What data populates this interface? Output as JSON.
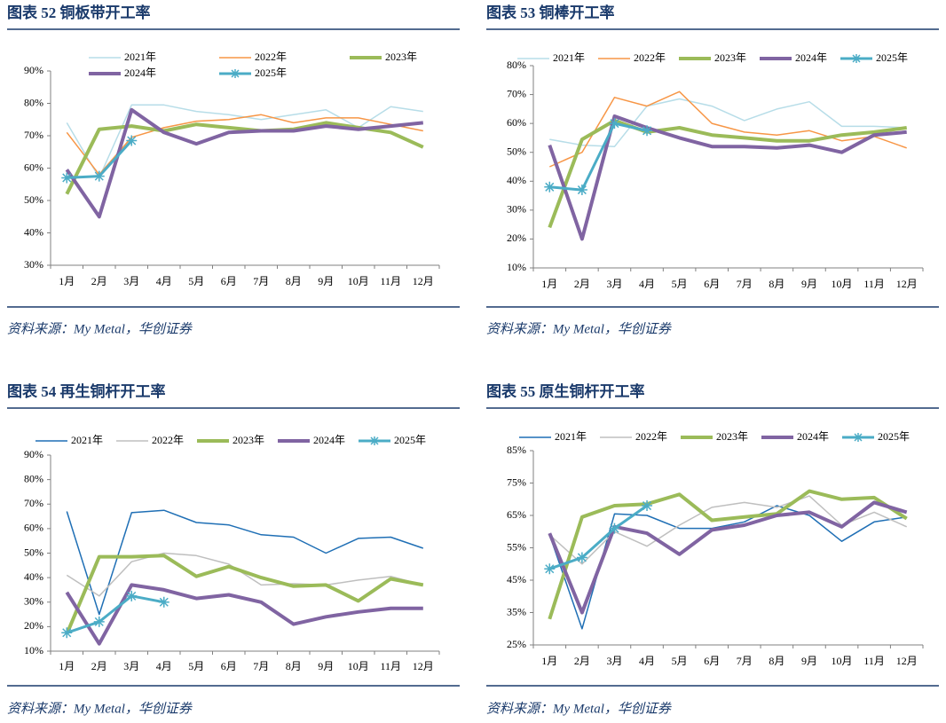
{
  "chart_data": [
    {
      "type": "line",
      "title": "图表 52 铜板带开工率",
      "source": "资料来源：My Metal，华创证券",
      "categories": [
        "1月",
        "2月",
        "3月",
        "4月",
        "5月",
        "6月",
        "7月",
        "8月",
        "9月",
        "10月",
        "11月",
        "12月"
      ],
      "ylim": [
        30,
        90
      ],
      "yticks": [
        {
          "value": 30,
          "label": "30%"
        },
        {
          "value": 40,
          "label": "40%"
        },
        {
          "value": 50,
          "label": "50%"
        },
        {
          "value": 60,
          "label": "60%"
        },
        {
          "value": 70,
          "label": "70%"
        },
        {
          "value": 80,
          "label": "80%"
        },
        {
          "value": 90,
          "label": "90%"
        }
      ],
      "series": [
        {
          "name": "2021年",
          "color": "#b7dde8",
          "values": [
            74,
            57,
            79.5,
            79.5,
            77.5,
            76.5,
            75,
            76.5,
            78,
            72.5,
            79,
            77.5
          ]
        },
        {
          "name": "2022年",
          "color": "#f79646",
          "values": [
            71,
            58,
            69.5,
            72.5,
            74.5,
            75,
            76.5,
            74,
            75.5,
            75.5,
            73.5,
            71.5
          ]
        },
        {
          "name": "2023年",
          "color": "#9bbb59",
          "values": [
            52,
            72,
            73,
            71.5,
            73.5,
            72.5,
            71.5,
            72,
            74,
            72.5,
            71,
            66.5
          ]
        },
        {
          "name": "2024年",
          "color": "#8064a2",
          "values": [
            59.5,
            45,
            78,
            71,
            67.5,
            71,
            71.5,
            71.5,
            73,
            72,
            73,
            74
          ]
        },
        {
          "name": "2025年",
          "color": "#4bacc6",
          "values": [
            57,
            57.5,
            68.5,
            null,
            null,
            null,
            null,
            null,
            null,
            null,
            null,
            null
          ]
        }
      ]
    },
    {
      "type": "line",
      "title": "图表 53 铜棒开工率",
      "source": "资料来源：My Metal，华创证券",
      "categories": [
        "1月",
        "2月",
        "3月",
        "4月",
        "5月",
        "6月",
        "7月",
        "8月",
        "9月",
        "10月",
        "11月",
        "12月"
      ],
      "ylim": [
        10,
        80
      ],
      "yticks": [
        {
          "value": 10,
          "label": "10%"
        },
        {
          "value": 20,
          "label": "20%"
        },
        {
          "value": 30,
          "label": "30%"
        },
        {
          "value": 40,
          "label": "40%"
        },
        {
          "value": 50,
          "label": "50%"
        },
        {
          "value": 60,
          "label": "60%"
        },
        {
          "value": 70,
          "label": "70%"
        },
        {
          "value": 80,
          "label": "80%"
        }
      ],
      "series": [
        {
          "name": "2021年",
          "color": "#b7dde8",
          "values": [
            54.5,
            52.5,
            52,
            66,
            68.5,
            66,
            61,
            65,
            67.5,
            59,
            59,
            58.5
          ]
        },
        {
          "name": "2022年",
          "color": "#f79646",
          "values": [
            45,
            50,
            69,
            66,
            71,
            60,
            57,
            56,
            57.5,
            54,
            55.5,
            51.5
          ]
        },
        {
          "name": "2023年",
          "color": "#9bbb59",
          "values": [
            24,
            54.5,
            61,
            57,
            58.5,
            56,
            55,
            54,
            54,
            56,
            57,
            58.5
          ]
        },
        {
          "name": "2024年",
          "color": "#8064a2",
          "values": [
            52.5,
            20,
            62.5,
            58.5,
            55,
            52,
            52,
            51.5,
            52.5,
            50,
            56,
            57
          ]
        },
        {
          "name": "2025年",
          "color": "#4bacc6",
          "values": [
            38,
            37,
            60,
            57.5,
            null,
            null,
            null,
            null,
            null,
            null,
            null,
            null
          ]
        }
      ]
    },
    {
      "type": "line",
      "title": "图表 54 再生铜杆开工率",
      "source": "资料来源：My Metal，华创证券",
      "categories": [
        "1月",
        "2月",
        "3月",
        "4月",
        "5月",
        "6月",
        "7月",
        "8月",
        "9月",
        "10月",
        "11月",
        "12月"
      ],
      "ylim": [
        10,
        90
      ],
      "yticks": [
        {
          "value": 10,
          "label": "10%"
        },
        {
          "value": 20,
          "label": "20%"
        },
        {
          "value": 30,
          "label": "30%"
        },
        {
          "value": 40,
          "label": "40%"
        },
        {
          "value": 50,
          "label": "50%"
        },
        {
          "value": 60,
          "label": "60%"
        },
        {
          "value": 70,
          "label": "70%"
        },
        {
          "value": 80,
          "label": "80%"
        },
        {
          "value": 90,
          "label": "90%"
        }
      ],
      "series": [
        {
          "name": "2021年",
          "color": "#1f6fb5",
          "values": [
            67,
            25,
            66.5,
            67.5,
            62.5,
            61.5,
            57.5,
            56.5,
            50,
            56,
            56.5,
            52
          ]
        },
        {
          "name": "2022年",
          "color": "#bfbfbf",
          "values": [
            41,
            32.5,
            46.5,
            50,
            49,
            45.5,
            37,
            37.5,
            37,
            39,
            40.5,
            37
          ]
        },
        {
          "name": "2023年",
          "color": "#9bbb59",
          "values": [
            17,
            48.5,
            48.5,
            49,
            40.5,
            44.5,
            40,
            36.5,
            37,
            30.5,
            39.5,
            37
          ]
        },
        {
          "name": "2024年",
          "color": "#8064a2",
          "values": [
            34,
            13,
            37,
            35,
            31.5,
            33,
            30,
            21,
            24,
            26,
            27.5,
            27.5
          ]
        },
        {
          "name": "2025年",
          "color": "#4bacc6",
          "values": [
            17.5,
            22,
            32.5,
            30,
            null,
            null,
            null,
            null,
            null,
            null,
            null,
            null
          ]
        }
      ]
    },
    {
      "type": "line",
      "title": "图表 55 原生铜杆开工率",
      "source": "资料来源：My Metal，华创证券",
      "categories": [
        "1月",
        "2月",
        "3月",
        "4月",
        "5月",
        "6月",
        "7月",
        "8月",
        "9月",
        "10月",
        "11月",
        "12月"
      ],
      "ylim": [
        25,
        85
      ],
      "yticks": [
        {
          "value": 25,
          "label": "25%"
        },
        {
          "value": 35,
          "label": "35%"
        },
        {
          "value": 45,
          "label": "45%"
        },
        {
          "value": 55,
          "label": "55%"
        },
        {
          "value": 65,
          "label": "65%"
        },
        {
          "value": 75,
          "label": "75%"
        },
        {
          "value": 85,
          "label": "85%"
        }
      ],
      "series": [
        {
          "name": "2021年",
          "color": "#1f6fb5",
          "values": [
            59,
            30,
            65.5,
            65,
            61,
            61,
            63,
            68,
            65,
            57,
            63,
            64.5
          ]
        },
        {
          "name": "2022年",
          "color": "#bfbfbf",
          "values": [
            59,
            50,
            60,
            55.5,
            62,
            67.5,
            69,
            67.5,
            71,
            62,
            66,
            61.5
          ]
        },
        {
          "name": "2023年",
          "color": "#9bbb59",
          "values": [
            33,
            64.5,
            68,
            68.5,
            71.5,
            63.5,
            64.5,
            65.5,
            72.5,
            70,
            70.5,
            64
          ]
        },
        {
          "name": "2024年",
          "color": "#8064a2",
          "values": [
            59.5,
            35,
            61.5,
            59.5,
            53,
            60.5,
            62,
            65,
            66,
            61.5,
            69,
            66
          ]
        },
        {
          "name": "2025年",
          "color": "#4bacc6",
          "values": [
            48.5,
            52,
            61,
            68,
            null,
            null,
            null,
            null,
            null,
            null,
            null,
            null
          ]
        }
      ]
    }
  ]
}
